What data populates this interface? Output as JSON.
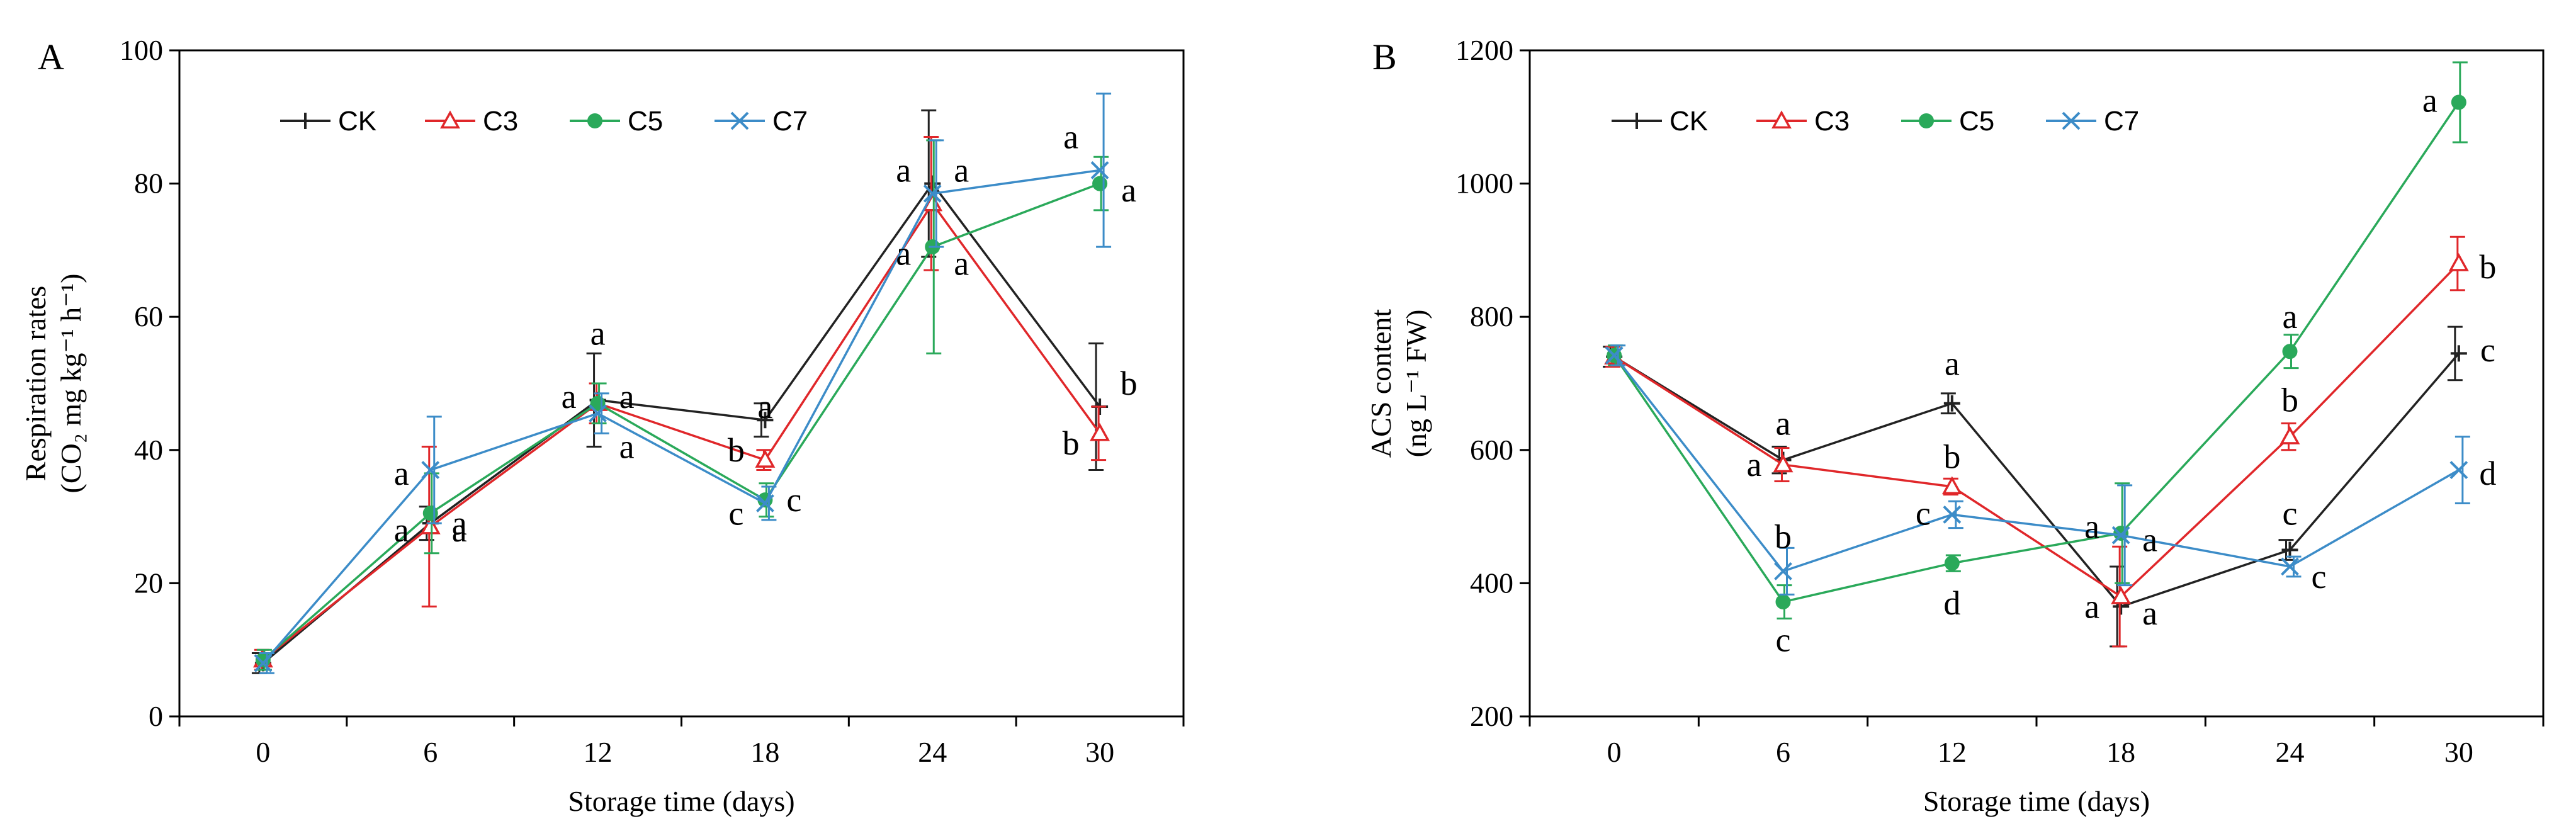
{
  "figure": {
    "panels": [
      "A",
      "B"
    ]
  },
  "colors": {
    "CK": "#222222",
    "C3": "#e0272a",
    "C5": "#2aa95a",
    "C7": "#3c8cc8",
    "axis": "#000000"
  },
  "chart_data": [
    {
      "type": "line",
      "panel_label": "A",
      "title": "",
      "xlabel": "Storage time (days)",
      "ylabel_line1": "Respiration rates",
      "ylabel_line2": "(CO₂ mg kg⁻¹ h⁻¹)",
      "x": [
        0,
        6,
        12,
        18,
        24,
        30
      ],
      "x_ticks": [
        "0",
        "6",
        "12",
        "18",
        "24",
        "30"
      ],
      "ylim": [
        0,
        100
      ],
      "y_ticks": [
        0,
        20,
        40,
        60,
        80,
        100
      ],
      "legend_position": "top-left",
      "series": [
        {
          "name": "CK",
          "marker": "plus",
          "values": [
            8,
            29,
            47.5,
            44.5,
            80,
            46.5
          ],
          "errors": [
            1.5,
            2.5,
            7,
            2.5,
            11,
            9.5
          ]
        },
        {
          "name": "C3",
          "marker": "triangle",
          "values": [
            8.5,
            28.5,
            47,
            38.5,
            77,
            42.5
          ],
          "errors": [
            1.5,
            12,
            3,
            1.5,
            10,
            4
          ]
        },
        {
          "name": "C5",
          "marker": "circle",
          "values": [
            8.5,
            30.5,
            47,
            32.5,
            70.5,
            80
          ],
          "errors": [
            1.5,
            6,
            3,
            2.5,
            16,
            4
          ]
        },
        {
          "name": "C7",
          "marker": "x",
          "values": [
            8,
            37,
            45.5,
            32,
            78.5,
            82
          ],
          "errors": [
            1.5,
            8,
            3,
            2.5,
            8,
            11.5
          ]
        }
      ],
      "annotations": [
        {
          "text": "a",
          "x": 6,
          "value": 36.5,
          "side": "left"
        },
        {
          "text": "a",
          "x": 6,
          "value": 29,
          "side": "right"
        },
        {
          "text": "a",
          "x": 6,
          "value": 28,
          "side": "left"
        },
        {
          "text": "a",
          "x": 6,
          "value": 28,
          "side": "right"
        },
        {
          "text": "a",
          "x": 12,
          "value": 57.5,
          "side": "center"
        },
        {
          "text": "a",
          "x": 12,
          "value": 48,
          "side": "left"
        },
        {
          "text": "a",
          "x": 12,
          "value": 48,
          "side": "right"
        },
        {
          "text": "a",
          "x": 12,
          "value": 40.5,
          "side": "right"
        },
        {
          "text": "a",
          "x": 18,
          "value": 46.5,
          "side": "center"
        },
        {
          "text": "b",
          "x": 18,
          "value": 40,
          "side": "left"
        },
        {
          "text": "c",
          "x": 18,
          "value": 30.5,
          "side": "left"
        },
        {
          "text": "c",
          "x": 18,
          "value": 32.5,
          "side": "right"
        },
        {
          "text": "a",
          "x": 24,
          "value": 82,
          "side": "left"
        },
        {
          "text": "a",
          "x": 24,
          "value": 82,
          "side": "right"
        },
        {
          "text": "a",
          "x": 24,
          "value": 69.5,
          "side": "left"
        },
        {
          "text": "a",
          "x": 24,
          "value": 68,
          "side": "right"
        },
        {
          "text": "a",
          "x": 30,
          "value": 87,
          "side": "left"
        },
        {
          "text": "a",
          "x": 30,
          "value": 79,
          "side": "right"
        },
        {
          "text": "b",
          "x": 30,
          "value": 50,
          "side": "right"
        },
        {
          "text": "b",
          "x": 30,
          "value": 41,
          "side": "left"
        }
      ]
    },
    {
      "type": "line",
      "panel_label": "B",
      "title": "",
      "xlabel": "Storage time (days)",
      "ylabel_line1": "ACS content",
      "ylabel_line2": "(ng L⁻¹ FW)",
      "x": [
        0,
        6,
        12,
        18,
        24,
        30
      ],
      "x_ticks": [
        "0",
        "6",
        "12",
        "18",
        "24",
        "30"
      ],
      "ylim": [
        200,
        1200
      ],
      "y_ticks": [
        200,
        400,
        600,
        800,
        1000,
        1200
      ],
      "legend_position": "top-left",
      "series": [
        {
          "name": "CK",
          "marker": "plus",
          "values": [
            740,
            585,
            670,
            365,
            450,
            745
          ],
          "errors": [
            15,
            20,
            15,
            60,
            15,
            40
          ]
        },
        {
          "name": "C3",
          "marker": "triangle",
          "values": [
            740,
            578,
            545,
            380,
            620,
            880
          ],
          "errors": [
            15,
            25,
            12,
            75,
            20,
            40
          ]
        },
        {
          "name": "C5",
          "marker": "circle",
          "values": [
            742,
            372,
            430,
            475,
            748,
            1122
          ],
          "errors": [
            15,
            25,
            12,
            75,
            25,
            60
          ]
        },
        {
          "name": "C7",
          "marker": "x",
          "values": [
            742,
            418,
            503,
            472,
            425,
            570
          ],
          "errors": [
            15,
            35,
            20,
            75,
            15,
            50
          ]
        }
      ],
      "annotations": [
        {
          "text": "a",
          "x": 6,
          "value": 640,
          "side": "center"
        },
        {
          "text": "a",
          "x": 6,
          "value": 578,
          "side": "left"
        },
        {
          "text": "b",
          "x": 6,
          "value": 470,
          "side": "center"
        },
        {
          "text": "c",
          "x": 6,
          "value": 315,
          "side": "center"
        },
        {
          "text": "a",
          "x": 12,
          "value": 730,
          "side": "center"
        },
        {
          "text": "b",
          "x": 12,
          "value": 590,
          "side": "center"
        },
        {
          "text": "c",
          "x": 12,
          "value": 505,
          "side": "left"
        },
        {
          "text": "d",
          "x": 12,
          "value": 370,
          "side": "center"
        },
        {
          "text": "a",
          "x": 18,
          "value": 485,
          "side": "left"
        },
        {
          "text": "a",
          "x": 18,
          "value": 465,
          "side": "right"
        },
        {
          "text": "a",
          "x": 18,
          "value": 365,
          "side": "left"
        },
        {
          "text": "a",
          "x": 18,
          "value": 355,
          "side": "right"
        },
        {
          "text": "a",
          "x": 24,
          "value": 800,
          "side": "center"
        },
        {
          "text": "b",
          "x": 24,
          "value": 675,
          "side": "center"
        },
        {
          "text": "c",
          "x": 24,
          "value": 505,
          "side": "center"
        },
        {
          "text": "c",
          "x": 24,
          "value": 410,
          "side": "right"
        },
        {
          "text": "a",
          "x": 30,
          "value": 1125,
          "side": "left"
        },
        {
          "text": "b",
          "x": 30,
          "value": 875,
          "side": "right"
        },
        {
          "text": "c",
          "x": 30,
          "value": 750,
          "side": "right"
        },
        {
          "text": "d",
          "x": 30,
          "value": 565,
          "side": "right"
        }
      ]
    }
  ]
}
